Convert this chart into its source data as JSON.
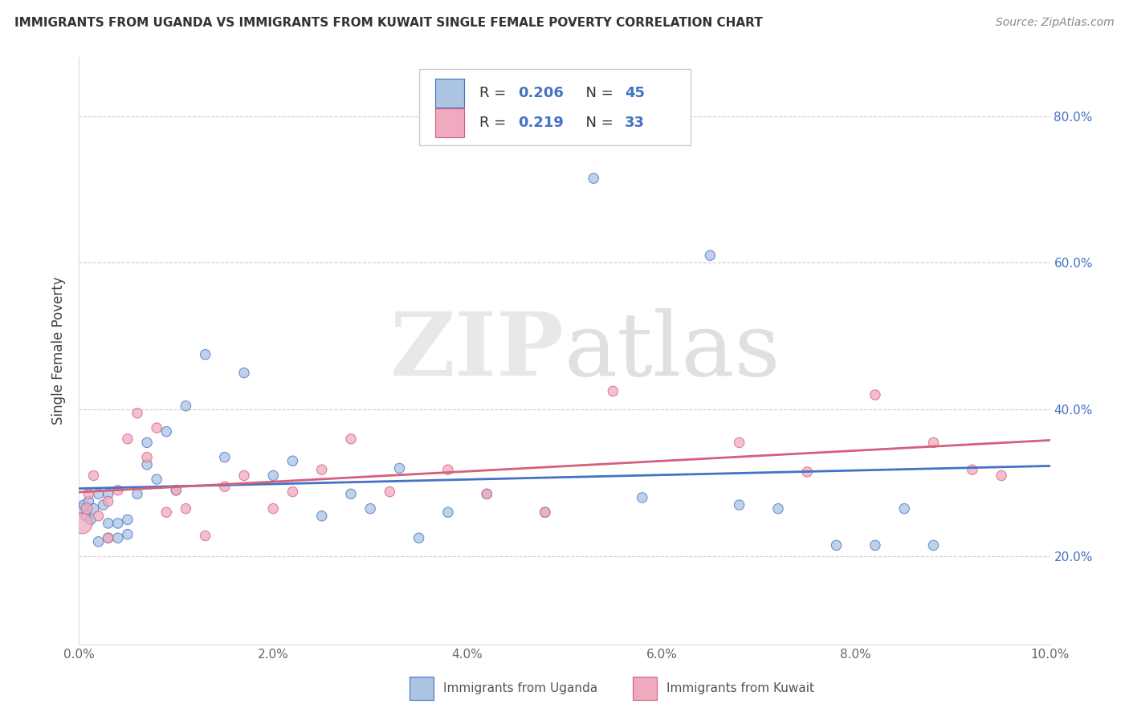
{
  "title": "IMMIGRANTS FROM UGANDA VS IMMIGRANTS FROM KUWAIT SINGLE FEMALE POVERTY CORRELATION CHART",
  "source": "Source: ZipAtlas.com",
  "ylabel": "Single Female Poverty",
  "xlim": [
    0.0,
    0.1
  ],
  "ylim": [
    0.08,
    0.88
  ],
  "xtick_vals": [
    0.0,
    0.02,
    0.04,
    0.06,
    0.08,
    0.1
  ],
  "xtick_labels": [
    "0.0%",
    "2.0%",
    "4.0%",
    "6.0%",
    "8.0%",
    "10.0%"
  ],
  "ytick_vals": [
    0.2,
    0.4,
    0.6,
    0.8
  ],
  "ytick_labels": [
    "20.0%",
    "40.0%",
    "60.0%",
    "80.0%"
  ],
  "legend_R1": "0.206",
  "legend_N1": "45",
  "legend_R2": "0.219",
  "legend_N2": "33",
  "color_uganda": "#aac4e2",
  "color_kuwait": "#f0aabf",
  "line_color_uganda": "#4472c4",
  "line_color_kuwait": "#d4607a",
  "background_color": "#ffffff",
  "grid_color": "#cccccc",
  "uganda_x": [
    0.0003,
    0.0005,
    0.0007,
    0.001,
    0.0012,
    0.0015,
    0.002,
    0.002,
    0.0025,
    0.003,
    0.003,
    0.003,
    0.004,
    0.004,
    0.005,
    0.005,
    0.006,
    0.007,
    0.007,
    0.008,
    0.009,
    0.01,
    0.011,
    0.013,
    0.015,
    0.017,
    0.02,
    0.022,
    0.025,
    0.028,
    0.03,
    0.033,
    0.035,
    0.038,
    0.042,
    0.048,
    0.053,
    0.058,
    0.065,
    0.068,
    0.072,
    0.078,
    0.082,
    0.085,
    0.088
  ],
  "uganda_y": [
    0.265,
    0.27,
    0.255,
    0.275,
    0.25,
    0.265,
    0.22,
    0.285,
    0.27,
    0.225,
    0.245,
    0.285,
    0.225,
    0.245,
    0.23,
    0.25,
    0.285,
    0.325,
    0.355,
    0.305,
    0.37,
    0.29,
    0.405,
    0.475,
    0.335,
    0.45,
    0.31,
    0.33,
    0.255,
    0.285,
    0.265,
    0.32,
    0.225,
    0.26,
    0.285,
    0.26,
    0.715,
    0.28,
    0.61,
    0.27,
    0.265,
    0.215,
    0.215,
    0.265,
    0.215
  ],
  "uganda_size": [
    100,
    80,
    80,
    80,
    80,
    80,
    80,
    80,
    80,
    80,
    80,
    80,
    80,
    80,
    80,
    80,
    80,
    80,
    80,
    80,
    80,
    80,
    80,
    80,
    80,
    80,
    80,
    80,
    80,
    80,
    80,
    80,
    80,
    80,
    80,
    80,
    80,
    80,
    80,
    80,
    80,
    80,
    80,
    80,
    80
  ],
  "kuwait_x": [
    0.0003,
    0.0008,
    0.001,
    0.0015,
    0.002,
    0.003,
    0.003,
    0.004,
    0.005,
    0.006,
    0.007,
    0.008,
    0.009,
    0.01,
    0.011,
    0.013,
    0.015,
    0.017,
    0.02,
    0.022,
    0.025,
    0.028,
    0.032,
    0.038,
    0.042,
    0.048,
    0.055,
    0.068,
    0.075,
    0.082,
    0.088,
    0.092,
    0.095
  ],
  "kuwait_y": [
    0.245,
    0.265,
    0.285,
    0.31,
    0.255,
    0.275,
    0.225,
    0.29,
    0.36,
    0.395,
    0.335,
    0.375,
    0.26,
    0.29,
    0.265,
    0.228,
    0.295,
    0.31,
    0.265,
    0.288,
    0.318,
    0.36,
    0.288,
    0.318,
    0.285,
    0.26,
    0.425,
    0.355,
    0.315,
    0.42,
    0.355,
    0.318,
    0.31
  ],
  "kuwait_size": [
    350,
    100,
    80,
    80,
    80,
    80,
    80,
    80,
    80,
    80,
    80,
    80,
    80,
    80,
    80,
    80,
    80,
    80,
    80,
    80,
    80,
    80,
    80,
    80,
    80,
    80,
    80,
    80,
    80,
    80,
    80,
    80,
    80
  ]
}
